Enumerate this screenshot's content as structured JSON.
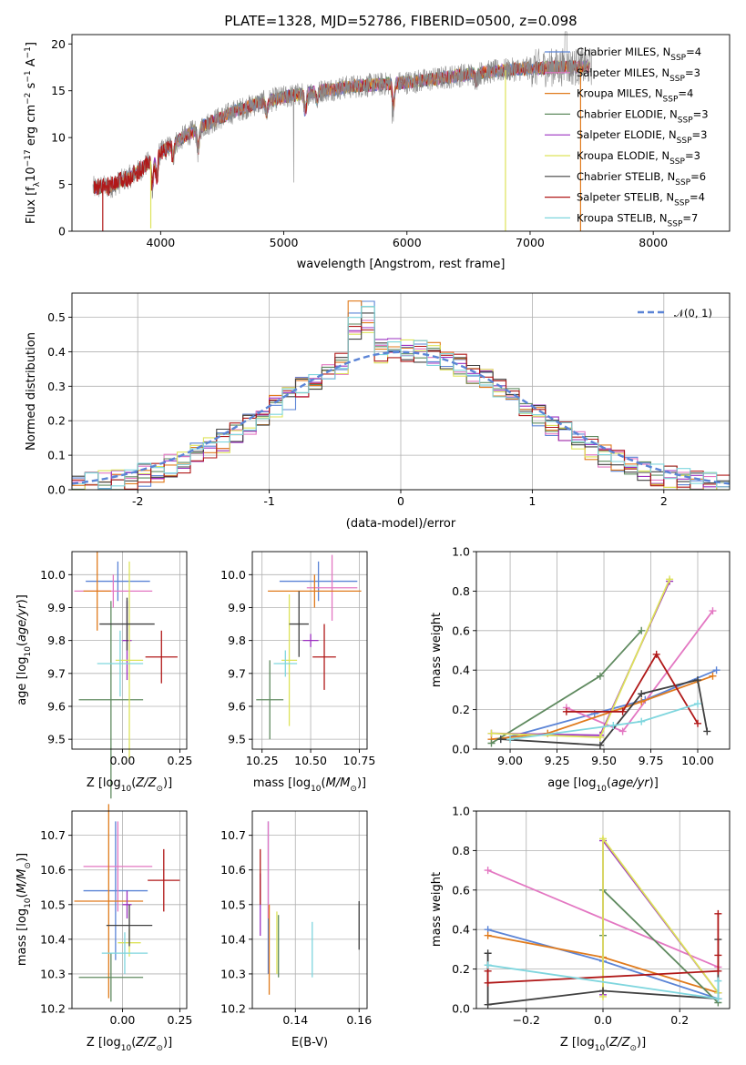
{
  "figure": {
    "title": "PLATE=1328, MJD=52786, FIBERID=0500, z=0.098"
  },
  "models": [
    {
      "name": "Chabrier MILES",
      "nssp": "4",
      "color": "#5b84d6"
    },
    {
      "name": "Salpeter MILES",
      "nssp": "3",
      "color": "#e377c2"
    },
    {
      "name": "Kroupa MILES",
      "nssp": "4",
      "color": "#e07b1d"
    },
    {
      "name": "Chabrier ELODIE",
      "nssp": "3",
      "color": "#5f8a5f"
    },
    {
      "name": "Salpeter ELODIE",
      "nssp": "3",
      "color": "#9b30c0"
    },
    {
      "name": "Kroupa ELODIE",
      "nssp": "3",
      "color": "#dde35a"
    },
    {
      "name": "Chabrier STELIB",
      "nssp": "6",
      "color": "#404040"
    },
    {
      "name": "Salpeter STELIB",
      "nssp": "4",
      "color": "#b01818"
    },
    {
      "name": "Kroupa STELIB",
      "nssp": "7",
      "color": "#7fd6de"
    }
  ],
  "chart_data": [
    {
      "id": "spectrum",
      "type": "line",
      "xlabel": "wavelength [Angstrom, rest frame]",
      "ylabel": "Flux [f_λ 10^-17 erg cm^-2 s^-1 A^-1]",
      "xlim": [
        3280,
        8620
      ],
      "ylim": [
        0,
        21
      ],
      "xticks": [
        4000,
        5000,
        6000,
        7000,
        8000
      ],
      "yticks": [
        0,
        5,
        10,
        15,
        20
      ],
      "legend": "top-right",
      "continuum": {
        "x": [
          3450,
          3600,
          3800,
          4000,
          4200,
          4400,
          4600,
          4800,
          5000,
          5200,
          5400,
          5600,
          5800,
          6000,
          6200,
          6400,
          6600,
          6800,
          7000,
          7200,
          7400,
          7500
        ],
        "y": [
          4.6,
          4.8,
          6.2,
          8.4,
          10.2,
          11.6,
          12.8,
          13.7,
          14.3,
          14.8,
          15.2,
          15.5,
          15.7,
          15.9,
          16.2,
          16.6,
          16.9,
          17.2,
          17.4,
          17.5,
          17.6,
          17.6
        ]
      },
      "absorption_features": [
        {
          "x": 3934,
          "depth": 3.0
        },
        {
          "x": 3969,
          "depth": 2.6
        },
        {
          "x": 4101,
          "depth": 1.5
        },
        {
          "x": 4305,
          "depth": 2.5
        },
        {
          "x": 4861,
          "depth": 1.3
        },
        {
          "x": 5175,
          "depth": 2.2
        },
        {
          "x": 5270,
          "depth": 1.2
        },
        {
          "x": 5890,
          "depth": 2.8
        },
        {
          "x": 6563,
          "depth": 0.8
        }
      ],
      "spikes": [
        {
          "x": 5080,
          "y": 5.2
        },
        {
          "x": 5880,
          "y": 11.5
        }
      ],
      "model_dropouts": [
        {
          "x": 3530,
          "y": 0,
          "model": 7
        },
        {
          "x": 3920,
          "y": 0.3,
          "model": 5
        },
        {
          "x": 6800,
          "y": 0,
          "model": 5
        },
        {
          "x": 7410,
          "y": 0,
          "model": 2
        }
      ]
    },
    {
      "id": "residuals",
      "type": "histogram",
      "xlabel": "(data-model)/error",
      "ylabel": "Normed distribution",
      "xlim": [
        -2.5,
        2.5
      ],
      "ylim": [
        0,
        0.57
      ],
      "xticks": [
        -2,
        -1,
        0,
        1,
        2
      ],
      "yticks": [
        0.0,
        0.1,
        0.2,
        0.3,
        0.4,
        0.5
      ],
      "bin_width": 0.1,
      "reference_curve": {
        "label": "N(0,1)",
        "mean": 0,
        "sigma": 1,
        "color": "#5b84d6"
      },
      "legend": "top-right"
    },
    {
      "id": "age-vs-Z",
      "type": "errorbar",
      "xlabel": "Z [log10(Z/Z_sun)]",
      "ylabel": "age  [log10(age/yr)]",
      "xlim": [
        -0.22,
        0.28
      ],
      "ylim": [
        9.47,
        10.07
      ],
      "xticks": [
        0.0,
        0.25
      ],
      "xtick_labels": [
        "0.00",
        "0.25"
      ],
      "yticks": [
        9.5,
        9.6,
        9.7,
        9.8,
        9.9,
        10.0
      ],
      "points": [
        {
          "model": 0,
          "x": -0.02,
          "xerr": 0.14,
          "y": 9.98,
          "yerr": 0.06
        },
        {
          "model": 1,
          "x": -0.04,
          "xerr": 0.17,
          "y": 9.95,
          "yerr": 0.05
        },
        {
          "model": 2,
          "x": -0.11,
          "xerr": 0.06,
          "y": 9.95,
          "yerr": 0.12
        },
        {
          "model": 3,
          "x": -0.05,
          "xerr": 0.14,
          "y": 9.62,
          "yerr": 0.3
        },
        {
          "model": 4,
          "x": 0.02,
          "xerr": 0.02,
          "y": 9.8,
          "yerr": 0.12
        },
        {
          "model": 5,
          "x": 0.03,
          "xerr": 0.06,
          "y": 9.74,
          "yerr": 0.3
        },
        {
          "model": 6,
          "x": 0.02,
          "xerr": 0.12,
          "y": 9.85,
          "yerr": 0.08
        },
        {
          "model": 7,
          "x": 0.17,
          "xerr": 0.07,
          "y": 9.75,
          "yerr": 0.08
        },
        {
          "model": 8,
          "x": -0.01,
          "xerr": 0.1,
          "y": 9.73,
          "yerr": 0.1
        }
      ]
    },
    {
      "id": "age-vs-mass",
      "type": "errorbar",
      "xlabel": "mass [log10(M/M_sun)]",
      "xlim": [
        10.2,
        10.79
      ],
      "ylim": [
        9.47,
        10.07
      ],
      "xticks": [
        10.25,
        10.5,
        10.75
      ],
      "xtick_labels": [
        "10.25",
        "10.50",
        "10.75"
      ],
      "yticks": [
        9.5,
        9.6,
        9.7,
        9.8,
        9.9,
        10.0
      ],
      "points": [
        {
          "model": 0,
          "x": 10.54,
          "xerr": 0.2,
          "y": 9.98,
          "yerr": 0.06
        },
        {
          "model": 1,
          "x": 10.61,
          "xerr": 0.13,
          "y": 9.96,
          "yerr": 0.1
        },
        {
          "model": 2,
          "x": 10.52,
          "xerr": 0.24,
          "y": 9.95,
          "yerr": 0.05
        },
        {
          "model": 3,
          "x": 10.29,
          "xerr": 0.07,
          "y": 9.62,
          "yerr": 0.12
        },
        {
          "model": 4,
          "x": 10.5,
          "xerr": 0.04,
          "y": 9.8,
          "yerr": 0.02
        },
        {
          "model": 5,
          "x": 10.39,
          "xerr": 0.04,
          "y": 9.74,
          "yerr": 0.2
        },
        {
          "model": 6,
          "x": 10.44,
          "xerr": 0.05,
          "y": 9.85,
          "yerr": 0.1
        },
        {
          "model": 7,
          "x": 10.57,
          "xerr": 0.06,
          "y": 9.75,
          "yerr": 0.1
        },
        {
          "model": 8,
          "x": 10.37,
          "xerr": 0.06,
          "y": 9.73,
          "yerr": 0.04
        }
      ]
    },
    {
      "id": "weight-vs-age",
      "type": "line",
      "xlabel": "age  [log10(age/yr)]",
      "ylabel": "mass weight",
      "xlim": [
        8.82,
        10.17
      ],
      "ylim": [
        0,
        1
      ],
      "xticks": [
        9.0,
        9.25,
        9.5,
        9.75,
        10.0
      ],
      "xtick_labels": [
        "9.00",
        "9.25",
        "9.50",
        "9.75",
        "10.00"
      ],
      "yticks": [
        0.0,
        0.2,
        0.4,
        0.6,
        0.8,
        1.0
      ],
      "series": [
        {
          "model": 0,
          "x": [
            8.95,
            9.45,
            9.72,
            10.1
          ],
          "y": [
            0.05,
            0.18,
            0.25,
            0.4
          ]
        },
        {
          "model": 1,
          "x": [
            9.3,
            9.6,
            10.08
          ],
          "y": [
            0.21,
            0.09,
            0.7
          ]
        },
        {
          "model": 2,
          "x": [
            8.9,
            9.2,
            9.7,
            10.08
          ],
          "y": [
            0.05,
            0.08,
            0.24,
            0.37
          ]
        },
        {
          "model": 3,
          "x": [
            8.9,
            9.48,
            9.7
          ],
          "y": [
            0.03,
            0.37,
            0.6
          ]
        },
        {
          "model": 4,
          "x": [
            8.9,
            9.48,
            9.85
          ],
          "y": [
            0.08,
            0.07,
            0.85
          ]
        },
        {
          "model": 5,
          "x": [
            8.9,
            9.48,
            9.85
          ],
          "y": [
            0.08,
            0.06,
            0.86
          ]
        },
        {
          "model": 6,
          "x": [
            8.95,
            9.48,
            9.7,
            10.0,
            10.05
          ],
          "y": [
            0.05,
            0.02,
            0.28,
            0.35,
            0.09
          ]
        },
        {
          "model": 7,
          "x": [
            9.3,
            9.6,
            9.78,
            10.0
          ],
          "y": [
            0.19,
            0.19,
            0.48,
            0.13
          ]
        },
        {
          "model": 8,
          "x": [
            9.0,
            9.55,
            9.7,
            10.0
          ],
          "y": [
            0.05,
            0.12,
            0.14,
            0.23
          ]
        }
      ]
    },
    {
      "id": "mass-vs-Z",
      "type": "errorbar",
      "xlabel": "Z [log10(Z/Z_sun)]",
      "ylabel": "mass [log10(M/M_sun)]",
      "xlim": [
        -0.22,
        0.28
      ],
      "ylim": [
        10.2,
        10.77
      ],
      "xticks": [
        0.0,
        0.25
      ],
      "xtick_labels": [
        "0.00",
        "0.25"
      ],
      "yticks": [
        10.2,
        10.3,
        10.4,
        10.5,
        10.6,
        10.7
      ],
      "points": [
        {
          "model": 0,
          "x": -0.03,
          "xerr": 0.14,
          "y": 10.54,
          "yerr": 0.2
        },
        {
          "model": 1,
          "x": -0.02,
          "xerr": 0.15,
          "y": 10.61,
          "yerr": 0.13
        },
        {
          "model": 2,
          "x": -0.06,
          "xerr": 0.15,
          "y": 10.51,
          "yerr": 0.28
        },
        {
          "model": 3,
          "x": -0.05,
          "xerr": 0.14,
          "y": 10.29,
          "yerr": 0.07
        },
        {
          "model": 4,
          "x": 0.02,
          "xerr": 0.02,
          "y": 10.5,
          "yerr": 0.04
        },
        {
          "model": 5,
          "x": 0.03,
          "xerr": 0.05,
          "y": 10.39,
          "yerr": 0.04
        },
        {
          "model": 6,
          "x": 0.03,
          "xerr": 0.1,
          "y": 10.44,
          "yerr": 0.06
        },
        {
          "model": 7,
          "x": 0.18,
          "xerr": 0.07,
          "y": 10.57,
          "yerr": 0.09
        },
        {
          "model": 8,
          "x": 0.01,
          "xerr": 0.1,
          "y": 10.36,
          "yerr": 0.06
        }
      ]
    },
    {
      "id": "mass-vs-EBV",
      "type": "errorbar",
      "xlabel": "E(B-V)",
      "xlim": [
        0.1265,
        0.1625
      ],
      "ylim": [
        10.2,
        10.77
      ],
      "xticks": [
        0.14,
        0.16
      ],
      "xtick_labels": [
        "0.14",
        "0.16"
      ],
      "yticks": [
        10.2,
        10.3,
        10.4,
        10.5,
        10.6,
        10.7
      ],
      "points": [
        {
          "model": 0,
          "x": 0.1315,
          "y": 10.52,
          "yerr": 0.22
        },
        {
          "model": 1,
          "x": 0.1315,
          "y": 10.6,
          "yerr": 0.14
        },
        {
          "model": 2,
          "x": 0.1318,
          "y": 10.37,
          "yerr": 0.13
        },
        {
          "model": 3,
          "x": 0.1347,
          "y": 10.38,
          "yerr": 0.09
        },
        {
          "model": 4,
          "x": 0.129,
          "y": 10.5,
          "yerr": 0.09
        },
        {
          "model": 5,
          "x": 0.1342,
          "y": 10.39,
          "yerr": 0.09
        },
        {
          "model": 6,
          "x": 0.16,
          "y": 10.44,
          "yerr": 0.07
        },
        {
          "model": 7,
          "x": 0.129,
          "y": 10.58,
          "yerr": 0.08
        },
        {
          "model": 8,
          "x": 0.1453,
          "y": 10.37,
          "yerr": 0.08
        }
      ]
    },
    {
      "id": "weight-vs-Z",
      "type": "line",
      "xlabel": "Z [log10(Z/Z_sun)]",
      "ylabel": "mass weight",
      "xlim": [
        -0.33,
        0.33
      ],
      "ylim": [
        0,
        1
      ],
      "xticks": [
        -0.2,
        0.0,
        0.2
      ],
      "xtick_labels": [
        "−0.2",
        "0.0",
        "0.2"
      ],
      "yticks": [
        0.0,
        0.2,
        0.4,
        0.6,
        0.8,
        1.0
      ],
      "series": [
        {
          "model": 0,
          "x": [
            -0.3,
            0.0,
            0.3
          ],
          "y": [
            0.4,
            0.24,
            0.05
          ]
        },
        {
          "model": 1,
          "x": [
            -0.3,
            0.3
          ],
          "y": [
            0.7,
            0.21
          ]
        },
        {
          "model": 2,
          "x": [
            -0.3,
            0.0,
            0.3
          ],
          "y": [
            0.37,
            0.26,
            0.08
          ]
        },
        {
          "model": 3,
          "x": [
            0.0,
            0.0,
            0.3
          ],
          "y": [
            0.37,
            0.6,
            0.03
          ]
        },
        {
          "model": 4,
          "x": [
            0.0,
            0.0,
            0.3
          ],
          "y": [
            0.07,
            0.85,
            0.08
          ]
        },
        {
          "model": 5,
          "x": [
            0.0,
            0.0,
            0.3
          ],
          "y": [
            0.06,
            0.86,
            0.08
          ]
        },
        {
          "model": 6,
          "x": [
            -0.3,
            -0.3,
            0.0,
            0.3,
            0.3
          ],
          "y": [
            0.28,
            0.02,
            0.09,
            0.05,
            0.35
          ]
        },
        {
          "model": 7,
          "x": [
            -0.3,
            -0.3,
            0.3,
            0.3,
            0.3
          ],
          "y": [
            0.19,
            0.13,
            0.19,
            0.27,
            0.48
          ]
        },
        {
          "model": 8,
          "x": [
            -0.3,
            0.3,
            0.3
          ],
          "y": [
            0.22,
            0.05,
            0.14
          ]
        }
      ]
    }
  ]
}
